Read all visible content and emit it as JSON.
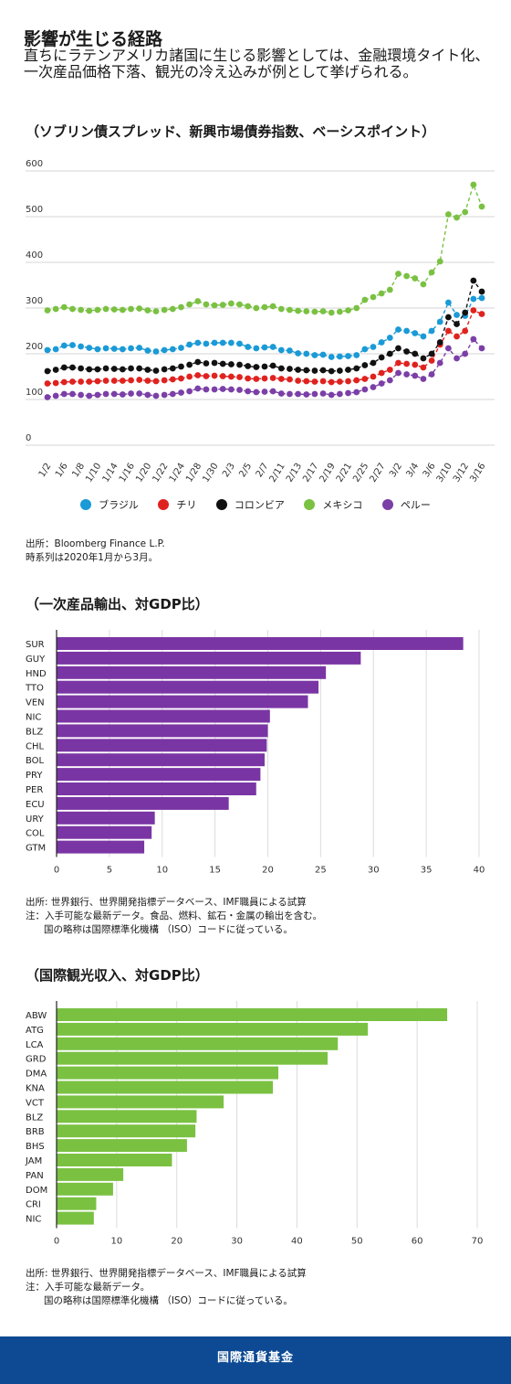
{
  "header": {
    "title": "影響が生じる経路",
    "subtitle": "直ちにラテンアメリカ諸国に生じる影響としては、金融環境タイト化、一次産品価格下落、観光の冷え込みが例として挙げられる。"
  },
  "section1": {
    "title": "（ソブリン債スプレッド、新興市場債券指数、ベーシスポイント）",
    "source1": "出所：Bloomberg Finance L.P.",
    "source2": "時系列は2020年1月から3月。"
  },
  "section2": {
    "title": "（一次産品輸出、対GDP比）",
    "source1": "出所: 世界銀行、世界開発指標データベース、IMF職員による試算",
    "source2": "注：入手可能な最新データ。食品、燃料、鉱石・金属の輸出を含む。",
    "source3": "国の略称は国際標準化機構 （ISO）コードに従っている。"
  },
  "section3": {
    "title": "（国際観光収入、対GDP比）",
    "source1": "出所: 世界銀行、世界開発指標データベース、IMF職員による試算",
    "source2": "注：入手可能な最新データ。",
    "source3": "国の略称は国際標準化機構 （ISO）コードに従っている。"
  },
  "footer": {
    "label": "国際通貨基金"
  },
  "chart_data": [
    {
      "type": "line",
      "title": "（ソブリン債スプレッド、新興市場債券指数、ベーシスポイント）",
      "ylim": [
        0,
        600
      ],
      "yticks": [
        0,
        100,
        200,
        300,
        400,
        500,
        600
      ],
      "grid": true,
      "legend_position": "bottom",
      "x": [
        "1/2",
        "1/3",
        "1/6",
        "1/7",
        "1/8",
        "1/9",
        "1/10",
        "1/13",
        "1/14",
        "1/15",
        "1/16",
        "1/17",
        "1/20",
        "1/21",
        "1/22",
        "1/23",
        "1/24",
        "1/27",
        "1/28",
        "1/29",
        "1/30",
        "1/31",
        "2/3",
        "2/4",
        "2/5",
        "2/6",
        "2/7",
        "2/10",
        "2/11",
        "2/12",
        "2/13",
        "2/14",
        "2/17",
        "2/18",
        "2/19",
        "2/20",
        "2/21",
        "2/24",
        "2/25",
        "2/26",
        "2/27",
        "2/28",
        "3/2",
        "3/3",
        "3/4",
        "3/5",
        "3/6",
        "3/9",
        "3/10",
        "3/11",
        "3/12",
        "3/13",
        "3/16"
      ],
      "xtick_labels": [
        "1/2",
        "1/6",
        "1/8",
        "1/10",
        "1/14",
        "1/16",
        "1/20",
        "1/22",
        "1/24",
        "1/28",
        "1/30",
        "2/3",
        "2/5",
        "2/7",
        "2/11",
        "2/13",
        "2/17",
        "2/19",
        "2/21",
        "2/25",
        "2/27",
        "3/2",
        "3/4",
        "3/6",
        "3/10",
        "3/12",
        "3/16"
      ],
      "series": [
        {
          "name": "ブラジル",
          "color": "#1a9ad6",
          "values": [
            208,
            210,
            218,
            219,
            216,
            213,
            210,
            212,
            211,
            210,
            212,
            213,
            207,
            205,
            208,
            210,
            213,
            220,
            224,
            222,
            224,
            224,
            224,
            222,
            215,
            212,
            214,
            215,
            208,
            207,
            201,
            200,
            197,
            198,
            193,
            194,
            195,
            197,
            210,
            215,
            225,
            235,
            253,
            250,
            245,
            238,
            250,
            270,
            312,
            285,
            283,
            320,
            322
          ]
        },
        {
          "name": "チリ",
          "color": "#e0221f",
          "values": [
            135,
            136,
            138,
            139,
            139,
            139,
            140,
            141,
            141,
            141,
            142,
            143,
            141,
            140,
            142,
            144,
            146,
            150,
            153,
            151,
            152,
            151,
            150,
            149,
            146,
            145,
            146,
            147,
            145,
            144,
            141,
            140,
            139,
            140,
            138,
            139,
            140,
            142,
            145,
            150,
            158,
            165,
            180,
            178,
            176,
            170,
            185,
            220,
            250,
            238,
            250,
            295,
            287
          ]
        },
        {
          "name": "コロンビア",
          "color": "#111111",
          "values": [
            162,
            165,
            170,
            170,
            168,
            166,
            166,
            168,
            167,
            166,
            168,
            168,
            165,
            163,
            166,
            168,
            172,
            176,
            182,
            179,
            180,
            178,
            177,
            176,
            173,
            171,
            172,
            174,
            168,
            167,
            165,
            164,
            163,
            164,
            162,
            163,
            165,
            168,
            175,
            180,
            192,
            200,
            212,
            205,
            200,
            190,
            200,
            225,
            280,
            265,
            290,
            360,
            336
          ]
        },
        {
          "name": "メキシコ",
          "color": "#7ac142",
          "values": [
            295,
            298,
            302,
            298,
            296,
            294,
            296,
            298,
            297,
            296,
            298,
            299,
            295,
            293,
            296,
            298,
            302,
            308,
            315,
            308,
            306,
            307,
            310,
            308,
            304,
            300,
            302,
            304,
            298,
            296,
            294,
            293,
            292,
            293,
            290,
            292,
            295,
            300,
            318,
            324,
            332,
            340,
            375,
            370,
            365,
            352,
            378,
            402,
            505,
            498,
            510,
            570,
            522
          ]
        },
        {
          "name": "ペルー",
          "color": "#7b3fa7",
          "values": [
            105,
            108,
            112,
            112,
            110,
            108,
            110,
            112,
            112,
            111,
            113,
            113,
            110,
            108,
            110,
            112,
            115,
            118,
            124,
            122,
            122,
            123,
            122,
            121,
            118,
            116,
            117,
            118,
            113,
            112,
            112,
            111,
            112,
            113,
            110,
            112,
            114,
            116,
            122,
            127,
            135,
            142,
            158,
            155,
            152,
            145,
            155,
            180,
            212,
            190,
            200,
            232,
            212
          ]
        }
      ]
    },
    {
      "type": "bar",
      "orientation": "horizontal",
      "title": "（一次産品輸出、対GDP比）",
      "color": "#7a35a4",
      "xlim": [
        0,
        40
      ],
      "xticks": [
        0,
        5,
        10,
        15,
        20,
        25,
        30,
        35,
        40
      ],
      "categories": [
        "SUR",
        "GUY",
        "HND",
        "TTO",
        "VEN",
        "NIC",
        "BLZ",
        "CHL",
        "BOL",
        "PRY",
        "PER",
        "ECU",
        "URY",
        "COL",
        "GTM"
      ],
      "values": [
        38.5,
        28.8,
        25.5,
        24.8,
        23.8,
        20.2,
        20.0,
        19.9,
        19.7,
        19.3,
        18.9,
        16.3,
        9.3,
        9.0,
        8.3
      ]
    },
    {
      "type": "bar",
      "orientation": "horizontal",
      "title": "（国際観光収入、対GDP比）",
      "color": "#7ac142",
      "xlim": [
        0,
        70
      ],
      "xticks": [
        0,
        10,
        20,
        30,
        40,
        50,
        60,
        70
      ],
      "categories": [
        "ABW",
        "ATG",
        "LCA",
        "GRD",
        "DMA",
        "KNA",
        "VCT",
        "BLZ",
        "BRB",
        "BHS",
        "JAM",
        "PAN",
        "DOM",
        "CRI",
        "NIC"
      ],
      "values": [
        65.0,
        51.8,
        46.8,
        45.1,
        36.9,
        36.0,
        27.8,
        23.3,
        23.1,
        21.7,
        19.2,
        11.1,
        9.4,
        6.6,
        6.2
      ]
    }
  ]
}
